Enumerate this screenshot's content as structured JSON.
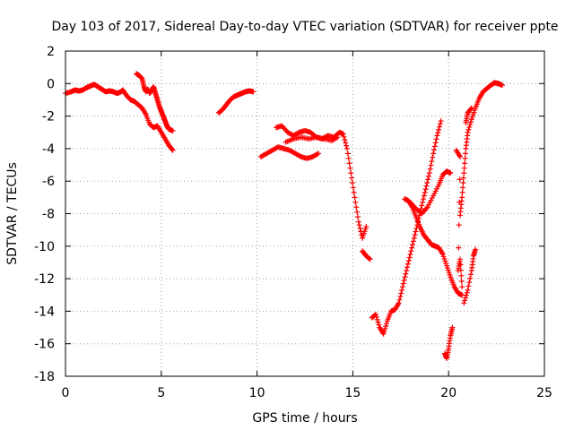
{
  "chart_data": {
    "type": "scatter",
    "title": "Day 103 of 2017, Sidereal Day-to-day VTEC variation (SDTVAR) for receiver ppte",
    "xlabel": "GPS time / hours",
    "ylabel": "SDTVAR / TECUs",
    "xlim": [
      0,
      25
    ],
    "ylim": [
      -18,
      2
    ],
    "xticks": [
      "0",
      "5",
      "10",
      "15",
      "20",
      "25"
    ],
    "yticks": [
      "2",
      "0",
      "-2",
      "-4",
      "-6",
      "-8",
      "-10",
      "-12",
      "-14",
      "-16",
      "-18"
    ],
    "grid": true,
    "marker": "+",
    "color": "#ff0000",
    "series": [
      {
        "segments": [
          [
            [
              0.0,
              -0.6
            ],
            [
              0.3,
              -0.5
            ],
            [
              0.5,
              -0.4
            ],
            [
              0.7,
              -0.45
            ],
            [
              0.9,
              -0.4
            ],
            [
              1.1,
              -0.25
            ],
            [
              1.3,
              -0.15
            ],
            [
              1.5,
              -0.05
            ],
            [
              1.7,
              -0.2
            ],
            [
              1.9,
              -0.35
            ],
            [
              2.1,
              -0.5
            ],
            [
              2.3,
              -0.45
            ],
            [
              2.5,
              -0.5
            ],
            [
              2.7,
              -0.6
            ],
            [
              2.9,
              -0.5
            ],
            [
              3.0,
              -0.4
            ],
            [
              3.2,
              -0.75
            ],
            [
              3.4,
              -1.0
            ],
            [
              3.6,
              -1.1
            ],
            [
              3.8,
              -1.3
            ],
            [
              4.0,
              -1.5
            ],
            [
              4.2,
              -1.9
            ],
            [
              4.4,
              -2.5
            ],
            [
              4.6,
              -2.7
            ],
            [
              4.8,
              -2.6
            ],
            [
              5.0,
              -3.0
            ],
            [
              5.2,
              -3.4
            ],
            [
              5.4,
              -3.8
            ],
            [
              5.6,
              -4.1
            ]
          ],
          [
            [
              3.7,
              0.6
            ],
            [
              3.85,
              0.5
            ],
            [
              4.0,
              0.3
            ],
            [
              4.1,
              -0.2
            ],
            [
              4.2,
              -0.5
            ],
            [
              4.3,
              -0.35
            ],
            [
              4.4,
              -0.6
            ],
            [
              4.5,
              -0.4
            ],
            [
              4.6,
              -0.2
            ],
            [
              4.7,
              -0.6
            ],
            [
              4.8,
              -1.0
            ],
            [
              4.9,
              -1.4
            ],
            [
              5.0,
              -1.7
            ],
            [
              5.1,
              -2.0
            ],
            [
              5.2,
              -2.3
            ],
            [
              5.3,
              -2.6
            ],
            [
              5.4,
              -2.8
            ],
            [
              5.6,
              -2.9
            ]
          ],
          [
            [
              8.0,
              -1.8
            ],
            [
              8.2,
              -1.6
            ],
            [
              8.4,
              -1.3
            ],
            [
              8.6,
              -1.0
            ],
            [
              8.8,
              -0.8
            ],
            [
              9.0,
              -0.7
            ],
            [
              9.2,
              -0.6
            ],
            [
              9.4,
              -0.5
            ],
            [
              9.6,
              -0.45
            ],
            [
              9.8,
              -0.5
            ]
          ],
          [
            [
              10.2,
              -4.5
            ],
            [
              10.5,
              -4.3
            ],
            [
              10.8,
              -4.1
            ],
            [
              11.1,
              -3.9
            ],
            [
              11.4,
              -4.0
            ],
            [
              11.7,
              -4.1
            ],
            [
              12.0,
              -4.3
            ],
            [
              12.3,
              -4.5
            ],
            [
              12.6,
              -4.6
            ],
            [
              12.9,
              -4.5
            ],
            [
              13.2,
              -4.3
            ]
          ],
          [
            [
              11.0,
              -2.7
            ],
            [
              11.3,
              -2.6
            ],
            [
              11.6,
              -3.0
            ],
            [
              11.9,
              -3.2
            ],
            [
              12.2,
              -3.0
            ],
            [
              12.5,
              -2.9
            ],
            [
              12.8,
              -3.0
            ],
            [
              13.1,
              -3.3
            ],
            [
              13.4,
              -3.4
            ],
            [
              13.7,
              -3.2
            ],
            [
              14.0,
              -3.3
            ],
            [
              14.3,
              -3.0
            ],
            [
              14.5,
              -3.1
            ],
            [
              14.7,
              -4.0
            ],
            [
              14.9,
              -5.5
            ],
            [
              15.1,
              -7.0
            ],
            [
              15.3,
              -8.5
            ],
            [
              15.5,
              -9.5
            ],
            [
              15.7,
              -8.8
            ]
          ],
          [
            [
              11.5,
              -3.6
            ],
            [
              11.9,
              -3.4
            ],
            [
              12.3,
              -3.3
            ],
            [
              12.7,
              -3.4
            ],
            [
              13.1,
              -3.3
            ],
            [
              13.5,
              -3.4
            ],
            [
              13.9,
              -3.5
            ],
            [
              14.2,
              -3.3
            ]
          ],
          [
            [
              15.5,
              -10.3
            ],
            [
              15.7,
              -10.6
            ],
            [
              15.9,
              -10.8
            ]
          ],
          [
            [
              16.0,
              -14.4
            ],
            [
              16.2,
              -14.2
            ],
            [
              16.4,
              -15.0
            ],
            [
              16.6,
              -15.4
            ],
            [
              16.8,
              -14.6
            ],
            [
              17.0,
              -14.0
            ],
            [
              17.2,
              -13.9
            ],
            [
              17.4,
              -13.5
            ],
            [
              17.6,
              -12.5
            ],
            [
              17.8,
              -11.5
            ],
            [
              18.0,
              -10.5
            ],
            [
              18.2,
              -9.5
            ],
            [
              18.4,
              -8.5
            ],
            [
              18.6,
              -7.5
            ],
            [
              18.8,
              -6.5
            ],
            [
              19.0,
              -5.5
            ],
            [
              19.2,
              -4.3
            ],
            [
              19.4,
              -3.2
            ],
            [
              19.6,
              -2.3
            ]
          ],
          [
            [
              17.7,
              -7.1
            ],
            [
              17.9,
              -7.2
            ],
            [
              18.1,
              -7.6
            ],
            [
              18.3,
              -8.2
            ],
            [
              18.5,
              -8.8
            ],
            [
              18.7,
              -9.3
            ],
            [
              18.9,
              -9.6
            ],
            [
              19.1,
              -9.9
            ],
            [
              19.3,
              -10.0
            ],
            [
              19.5,
              -10.1
            ],
            [
              19.7,
              -10.5
            ],
            [
              19.9,
              -11.2
            ],
            [
              20.1,
              -11.9
            ],
            [
              20.3,
              -12.5
            ],
            [
              20.5,
              -12.9
            ],
            [
              20.7,
              -13.0
            ]
          ],
          [
            [
              18.0,
              -7.3
            ],
            [
              18.3,
              -7.7
            ],
            [
              18.6,
              -8.0
            ],
            [
              18.9,
              -7.6
            ],
            [
              19.2,
              -6.9
            ],
            [
              19.5,
              -6.2
            ],
            [
              19.7,
              -5.6
            ],
            [
              19.9,
              -5.4
            ],
            [
              20.1,
              -5.5
            ]
          ],
          [
            [
              19.8,
              -16.6
            ],
            [
              19.9,
              -16.9
            ],
            [
              20.0,
              -16.3
            ],
            [
              20.1,
              -15.5
            ],
            [
              20.2,
              -15.0
            ]
          ],
          [
            [
              20.4,
              -4.1
            ],
            [
              20.6,
              -4.5
            ],
            [
              20.5,
              -11.5
            ],
            [
              20.6,
              -10.8
            ],
            [
              20.7,
              -12.5
            ]
          ],
          [
            [
              20.6,
              -8.1
            ],
            [
              20.7,
              -7.0
            ],
            [
              20.8,
              -5.5
            ],
            [
              20.9,
              -4.0
            ],
            [
              21.0,
              -3.0
            ],
            [
              21.2,
              -2.2
            ],
            [
              21.4,
              -1.5
            ],
            [
              21.6,
              -0.9
            ],
            [
              21.8,
              -0.5
            ],
            [
              22.0,
              -0.3
            ],
            [
              22.2,
              -0.1
            ],
            [
              22.4,
              0.05
            ],
            [
              22.6,
              0.0
            ],
            [
              22.8,
              -0.1
            ]
          ],
          [
            [
              20.8,
              -13.5
            ],
            [
              21.0,
              -12.7
            ],
            [
              21.2,
              -11.5
            ],
            [
              21.3,
              -10.6
            ],
            [
              21.4,
              -10.2
            ]
          ],
          [
            [
              20.9,
              -2.4
            ],
            [
              21.0,
              -1.8
            ],
            [
              21.2,
              -1.5
            ]
          ]
        ]
      }
    ]
  }
}
